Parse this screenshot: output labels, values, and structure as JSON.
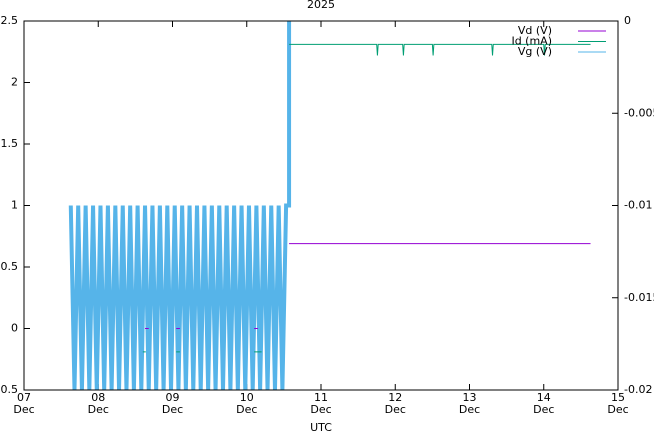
{
  "chart_data": {
    "type": "line",
    "title": "2025",
    "xlabel": "UTC",
    "xlim": [
      7,
      15
    ],
    "xticks": [
      {
        "value": 7,
        "label": "07\nDec"
      },
      {
        "value": 8,
        "label": "08\nDec"
      },
      {
        "value": 9,
        "label": "09\nDec"
      },
      {
        "value": 10,
        "label": "10\nDec"
      },
      {
        "value": 11,
        "label": "11\nDec"
      },
      {
        "value": 12,
        "label": "12\nDec"
      },
      {
        "value": 13,
        "label": "13\nDec"
      },
      {
        "value": 14,
        "label": "14\nDec"
      },
      {
        "value": 15,
        "label": "15\nDec"
      }
    ],
    "ylim": [
      -0.5,
      2.5
    ],
    "yticks": [
      -0.5,
      0,
      0.5,
      1,
      1.5,
      2,
      2.5
    ],
    "y2lim": [
      -0.02,
      0
    ],
    "y2ticks": [
      -0.02,
      -0.015,
      -0.01,
      -0.005,
      0
    ],
    "legend": "top-right",
    "series": [
      {
        "name": "Vd (V)",
        "color": "#9400d3",
        "x": [
          8.63,
          8.68,
          8.9,
          9.05,
          9.1,
          9.3,
          10.1,
          10.15,
          10.25,
          10.57,
          14.63
        ],
        "values": [
          0,
          0,
          null,
          0,
          0,
          null,
          0,
          0,
          null,
          0.69,
          0.69
        ]
      },
      {
        "name": "Id (mA)",
        "color": "#009e73",
        "x": [
          8.6,
          8.64,
          8.8,
          9.05,
          9.1,
          9.3,
          10.1,
          10.2,
          10.3,
          10.57,
          11.75,
          11.76,
          11.77,
          12.1,
          12.11,
          12.12,
          12.5,
          12.51,
          12.52,
          13.3,
          13.31,
          13.32,
          14.0,
          14.01,
          14.02,
          14.63
        ],
        "values": [
          -0.19,
          -0.19,
          null,
          -0.19,
          -0.19,
          null,
          -0.19,
          -0.19,
          null,
          2.31,
          2.31,
          2.22,
          2.31,
          2.31,
          2.22,
          2.31,
          2.31,
          2.22,
          2.31,
          2.31,
          2.22,
          2.31,
          2.31,
          2.22,
          2.31,
          2.31
        ]
      },
      {
        "name": "Vg (V)",
        "color": "#56b4e9",
        "x": [
          7.63,
          7.68,
          7.73,
          7.78,
          7.83,
          7.88,
          7.93,
          7.98,
          8.03,
          8.08,
          8.13,
          8.18,
          8.23,
          8.28,
          8.33,
          8.38,
          8.43,
          8.48,
          8.53,
          8.58,
          8.63,
          8.68,
          8.73,
          8.78,
          8.83,
          8.88,
          8.93,
          8.98,
          9.03,
          9.08,
          9.13,
          9.18,
          9.23,
          9.28,
          9.33,
          9.38,
          9.43,
          9.48,
          9.53,
          9.58,
          9.63,
          9.68,
          9.73,
          9.78,
          9.83,
          9.88,
          9.93,
          9.98,
          10.03,
          10.08,
          10.13,
          10.18,
          10.23,
          10.28,
          10.33,
          10.38,
          10.43,
          10.48,
          10.53,
          10.57,
          10.57
        ],
        "values": [
          1,
          -0.5,
          1,
          -0.5,
          1,
          -0.5,
          1,
          -0.5,
          1,
          -0.5,
          1,
          -0.5,
          1,
          -0.5,
          1,
          -0.5,
          1,
          -0.5,
          1,
          -0.5,
          1,
          -0.5,
          1,
          -0.5,
          1,
          -0.5,
          1,
          -0.5,
          1,
          -0.5,
          1,
          -0.5,
          1,
          -0.5,
          1,
          -0.5,
          1,
          -0.5,
          1,
          -0.5,
          1,
          -0.5,
          1,
          -0.5,
          1,
          -0.5,
          1,
          -0.5,
          1,
          -0.5,
          1,
          -0.5,
          1,
          -0.5,
          1,
          -0.5,
          1,
          -0.5,
          1,
          1,
          2.5
        ]
      }
    ]
  }
}
